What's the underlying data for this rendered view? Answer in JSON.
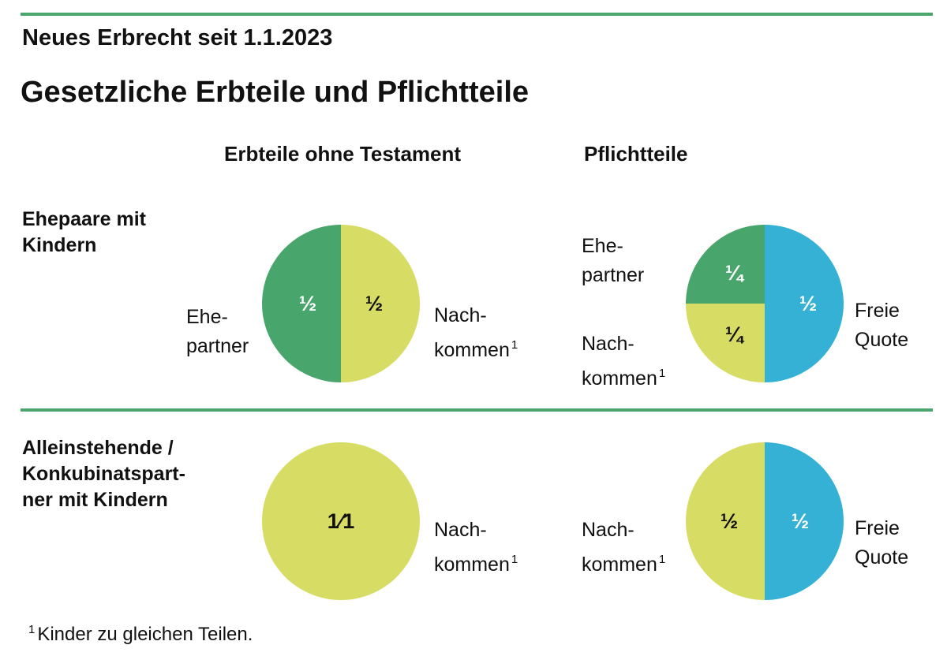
{
  "supertitle": "Neues Erbrecht seit 1.1.2023",
  "title": "Gesetzliche Erbteile und Pflichtteile",
  "columns": [
    "Erbteile ohne Testament",
    "Pflichtteile"
  ],
  "rows": [
    {
      "label_line1": "Ehepaare mit",
      "label_line2": "Kindern"
    },
    {
      "label_line1": "Alleinstehende /",
      "label_line2": "Konkubinatspart-",
      "label_line3": "ner mit Kindern"
    }
  ],
  "labels": {
    "ehe": "Ehe-",
    "partner": "partner",
    "nach": "Nach-",
    "kommen": "kommen",
    "freie": "Freie",
    "quote": "Quote"
  },
  "footnote": {
    "marker": "1",
    "text": "Kinder zu gleichen Teilen."
  },
  "colors": {
    "ehepartner": "#48a56c",
    "nachkommen": "#d6dc64",
    "freie_quote": "#35b1d6",
    "rule": "#4aa66c"
  },
  "chart_data": [
    {
      "type": "pie",
      "row": "Ehepaare mit Kindern",
      "column": "Erbteile ohne Testament",
      "slices": [
        {
          "name": "Ehepartner",
          "value": 0.5,
          "label": "½"
        },
        {
          "name": "Nachkommen",
          "value": 0.5,
          "label": "½"
        }
      ]
    },
    {
      "type": "pie",
      "row": "Ehepaare mit Kindern",
      "column": "Pflichtteile",
      "slices": [
        {
          "name": "Ehepartner",
          "value": 0.25,
          "label": "¼"
        },
        {
          "name": "Nachkommen",
          "value": 0.25,
          "label": "¼"
        },
        {
          "name": "Freie Quote",
          "value": 0.5,
          "label": "½"
        }
      ]
    },
    {
      "type": "pie",
      "row": "Alleinstehende / Konkubinatspartner mit Kindern",
      "column": "Erbteile ohne Testament",
      "slices": [
        {
          "name": "Nachkommen",
          "value": 1.0,
          "label": "1⁄1"
        }
      ]
    },
    {
      "type": "pie",
      "row": "Alleinstehende / Konkubinatspartner mit Kindern",
      "column": "Pflichtteile",
      "slices": [
        {
          "name": "Nachkommen",
          "value": 0.5,
          "label": "½"
        },
        {
          "name": "Freie Quote",
          "value": 0.5,
          "label": "½"
        }
      ]
    }
  ]
}
